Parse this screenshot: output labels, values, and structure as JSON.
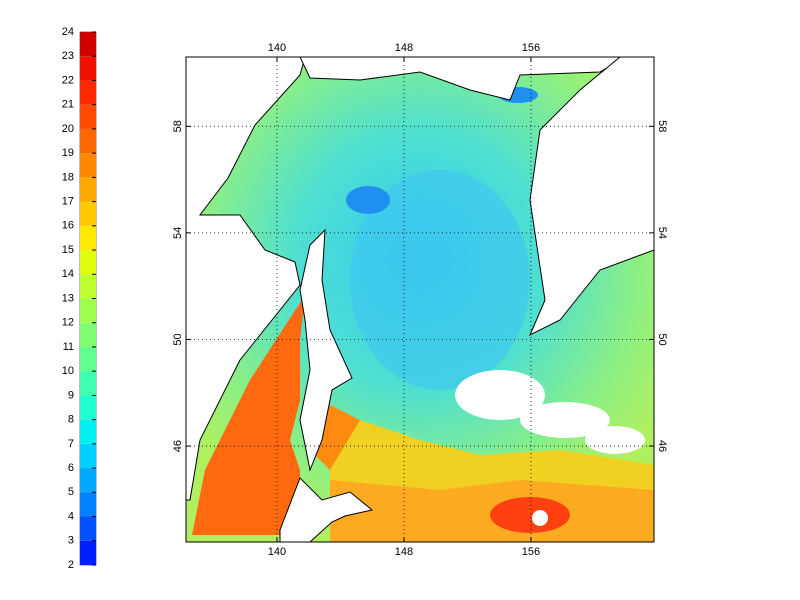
{
  "chart_data": {
    "type": "map",
    "colorbar": {
      "ticks": [
        2,
        3,
        4,
        5,
        6,
        7,
        8,
        9,
        10,
        11,
        12,
        13,
        14,
        15,
        16,
        17,
        18,
        19,
        20,
        21,
        22,
        23,
        24
      ],
      "colors": [
        "#0020ff",
        "#0050ff",
        "#0080ff",
        "#00a8ff",
        "#00d0ff",
        "#00f0f0",
        "#20ffd0",
        "#40ffb0",
        "#60ff90",
        "#80ff70",
        "#a0ff50",
        "#c0ff30",
        "#e0ff10",
        "#ffe800",
        "#ffc800",
        "#ffa800",
        "#ff8800",
        "#ff6800",
        "#ff4800",
        "#ff2800",
        "#f01000",
        "#d00000"
      ]
    },
    "xlim": [
      134.27,
      163.75
    ],
    "xticks": [
      140,
      148,
      156
    ],
    "ylim": [
      42.4,
      60.6
    ],
    "yticks": [
      46,
      50,
      54,
      58
    ],
    "grid": true
  }
}
